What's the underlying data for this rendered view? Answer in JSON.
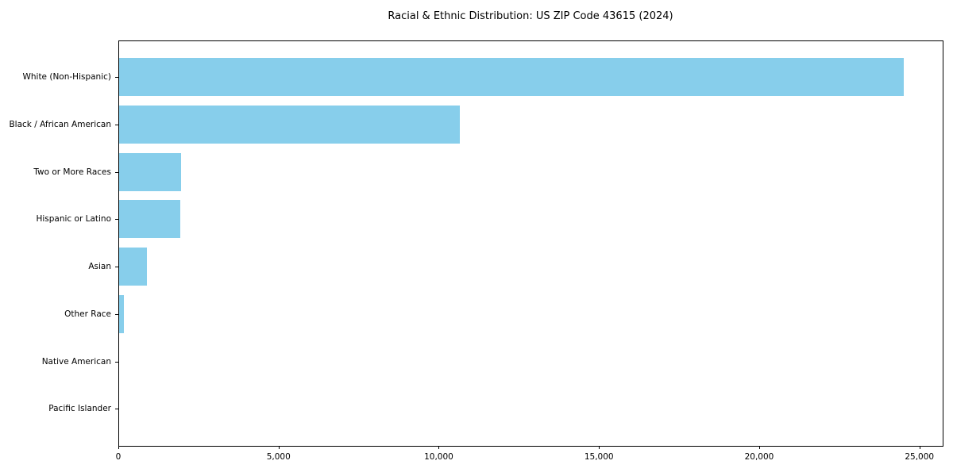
{
  "colors": {
    "bar": "#87CEEB",
    "axis": "#000000",
    "text": "#000000",
    "background": "#ffffff"
  },
  "chart_data": {
    "type": "bar",
    "orientation": "horizontal",
    "title": "Racial & Ethnic Distribution: US ZIP Code 43615 (2024)",
    "xlabel": "",
    "ylabel": "",
    "categories": [
      "White (Non-Hispanic)",
      "Black / African American",
      "Two or More Races",
      "Hispanic or Latino",
      "Asian",
      "Other Race",
      "Native American",
      "Pacific Islander"
    ],
    "values": [
      24500,
      10650,
      1970,
      1940,
      900,
      175,
      0,
      0
    ],
    "bar_color": "#87CEEB",
    "xlim": [
      0,
      25725
    ],
    "xticks": {
      "values": [
        0,
        5000,
        10000,
        15000,
        20000,
        25000
      ],
      "labels": [
        "0",
        "5,000",
        "10,000",
        "15,000",
        "20,000",
        "25,000"
      ]
    },
    "grid": false,
    "legend": null
  }
}
